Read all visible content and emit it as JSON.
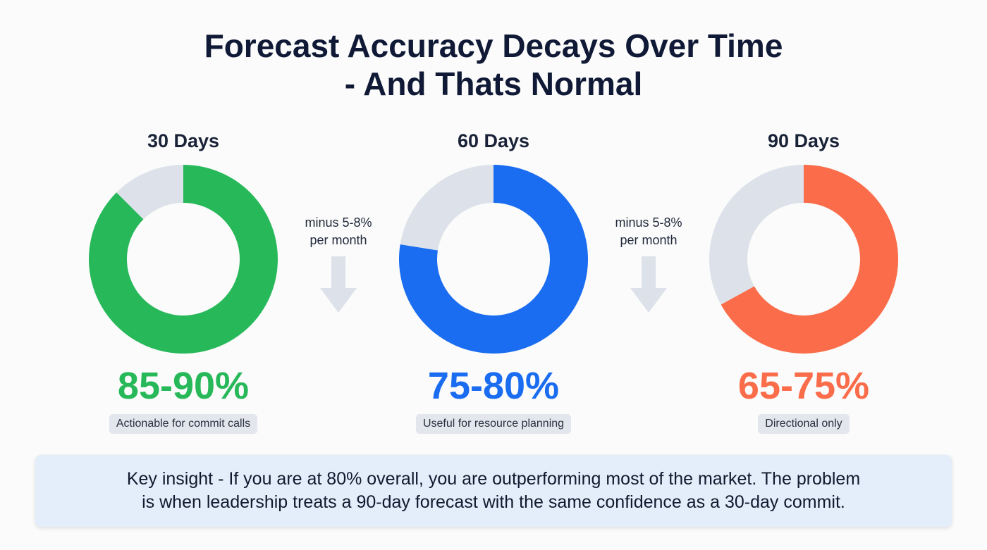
{
  "title": {
    "line1": "Forecast Accuracy Decays Over Time",
    "line2": "- And Thats Normal"
  },
  "chart_data": {
    "type": "pie",
    "title": "Forecast Accuracy Decays Over Time - And Thats Normal",
    "series": [
      {
        "name": "30 Days",
        "value": 87.5,
        "range_label": "85-90%",
        "caption": "Actionable for commit calls",
        "color": "#27b85a"
      },
      {
        "name": "60 Days",
        "value": 77.5,
        "range_label": "75-80%",
        "caption": "Useful for resource planning",
        "color": "#1a6cf0"
      },
      {
        "name": "90 Days",
        "value": 67,
        "range_label": "65-75%",
        "caption": "Directional only",
        "color": "#fb6c4a"
      }
    ],
    "remainder_color": "#dde2ea",
    "annotations": [
      "minus 5-8%\nper month",
      "minus 5-8%\nper month"
    ]
  },
  "decay": [
    {
      "line1": "minus 5-8%",
      "line2": "per month"
    },
    {
      "line1": "minus 5-8%",
      "line2": "per month"
    }
  ],
  "insight": {
    "line1": "Key insight - If you are at 80% overall, you are outperforming most of the market. The problem",
    "line2": "is when leadership treats a 90-day forecast with the same confidence as a 30-day commit."
  }
}
